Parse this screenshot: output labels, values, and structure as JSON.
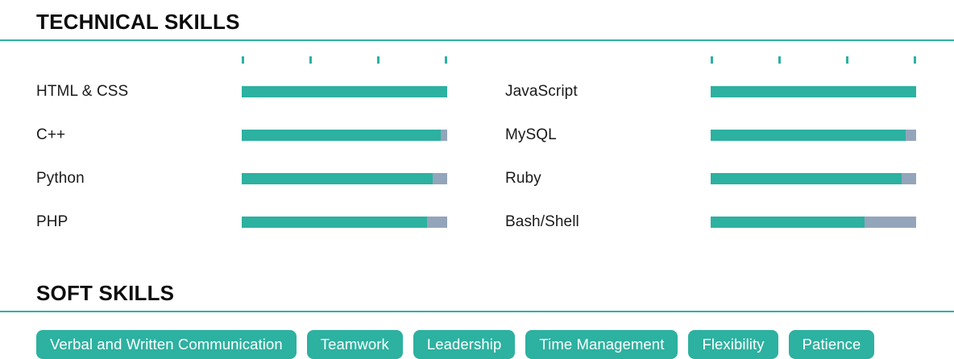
{
  "technical_skills": {
    "title": "TECHNICAL SKILLS",
    "scale_tick_positions_pct": [
      0,
      33.33,
      66.67,
      100
    ],
    "columns": [
      {
        "skills": [
          {
            "name": "HTML & CSS",
            "level_pct": 100
          },
          {
            "name": "C++",
            "level_pct": 97
          },
          {
            "name": "Python",
            "level_pct": 93
          },
          {
            "name": "PHP",
            "level_pct": 90
          }
        ]
      },
      {
        "skills": [
          {
            "name": "JavaScript",
            "level_pct": 100
          },
          {
            "name": "MySQL",
            "level_pct": 95
          },
          {
            "name": "Ruby",
            "level_pct": 93
          },
          {
            "name": "Bash/Shell",
            "level_pct": 75
          }
        ]
      }
    ]
  },
  "soft_skills": {
    "title": "SOFT SKILLS",
    "tags": [
      "Verbal and Written Communication",
      "Teamwork",
      "Leadership",
      "Time Management",
      "Flexibility",
      "Patience"
    ]
  },
  "colors": {
    "accent_teal": "#2db1a0",
    "bar_remainder_gray": "#93a5ba",
    "heading_text": "#0d0d0d",
    "pill_text": "#ffffff"
  },
  "chart_data": {
    "type": "bar",
    "title": "TECHNICAL SKILLS",
    "orientation": "horizontal",
    "categories": [
      "HTML & CSS",
      "C++",
      "Python",
      "PHP",
      "JavaScript",
      "MySQL",
      "Ruby",
      "Bash/Shell"
    ],
    "values": [
      100,
      97,
      93,
      90,
      100,
      95,
      93,
      75
    ],
    "xlabel": "",
    "ylabel": "",
    "xlim": [
      0,
      100
    ],
    "grid": false,
    "legend": false,
    "tick_positions_pct": [
      0,
      33.33,
      66.67,
      100
    ]
  }
}
